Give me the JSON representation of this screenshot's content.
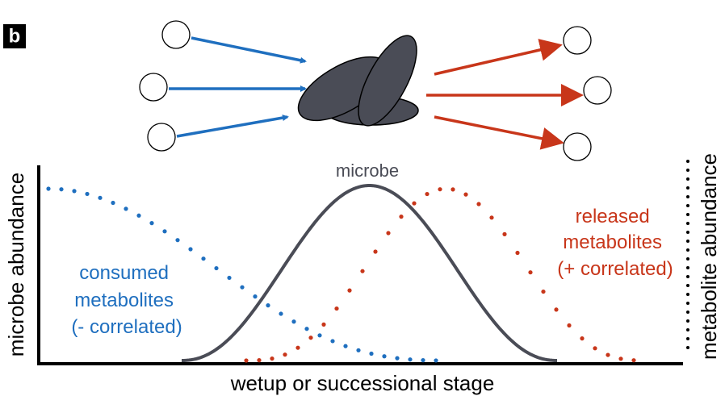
{
  "panel_label": "b",
  "curves": {
    "microbe": "microbe",
    "released": [
      "released",
      "metabolites",
      "(+ correlated)"
    ],
    "consumed": [
      "consumed",
      "metabolites",
      "(- correlated)"
    ]
  },
  "axes": {
    "y_left": "microbe abundance",
    "y_right": "metabolite abundance",
    "x": "wetup or successional stage"
  }
}
